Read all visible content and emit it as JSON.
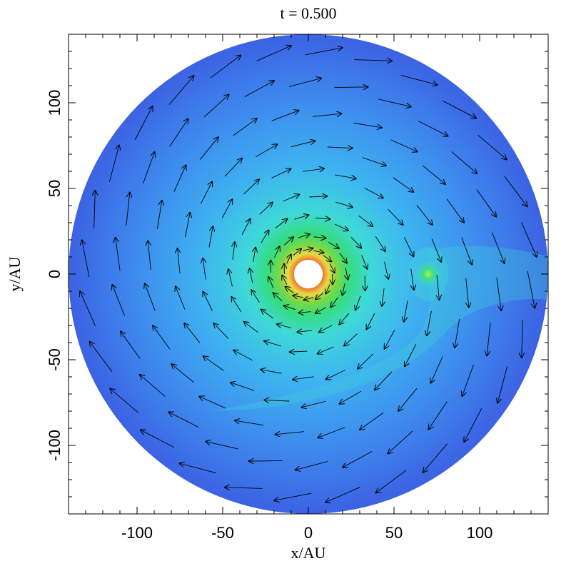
{
  "chart_data": {
    "type": "heatmap",
    "title": "t = 0.500",
    "xlabel": "x/AU",
    "ylabel": "y/AU",
    "xlim": [
      -140,
      140
    ],
    "ylim": [
      -140,
      140
    ],
    "x_ticks": [
      -100,
      -50,
      0,
      50,
      100
    ],
    "y_ticks": [
      -100,
      -50,
      0,
      50,
      100
    ],
    "x_tick_labels": [
      "-100",
      "-50",
      "0",
      "50",
      "100"
    ],
    "y_tick_labels": [
      "-100",
      "-50",
      "0",
      "50",
      "100"
    ],
    "disk": {
      "center": [
        0,
        0
      ],
      "outer_radius": 140,
      "inner_radius": 8
    },
    "planet": {
      "x": 70,
      "y": 0
    },
    "colormap": [
      "#ffffff",
      "#d11e2a",
      "#f08a2c",
      "#e9d84a",
      "#7fd843",
      "#35dc7d",
      "#3fd9d9",
      "#3eb3f0",
      "#3e86ec",
      "#3c5fe2"
    ],
    "velocity_field": {
      "ring_radii": [
        14,
        22,
        33,
        45,
        60,
        75,
        92,
        110,
        128
      ],
      "arrows_per_ring": 28
    }
  }
}
